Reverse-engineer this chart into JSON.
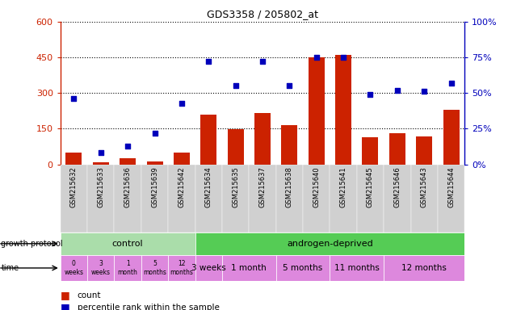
{
  "title": "GDS3358 / 205802_at",
  "samples": [
    "GSM215632",
    "GSM215633",
    "GSM215636",
    "GSM215639",
    "GSM215642",
    "GSM215634",
    "GSM215635",
    "GSM215637",
    "GSM215638",
    "GSM215640",
    "GSM215641",
    "GSM215645",
    "GSM215646",
    "GSM215643",
    "GSM215644"
  ],
  "count": [
    50,
    8,
    25,
    12,
    50,
    210,
    148,
    215,
    165,
    450,
    462,
    115,
    130,
    118,
    228
  ],
  "percentile": [
    46,
    8,
    13,
    22,
    43,
    72,
    55,
    72,
    55,
    75,
    75,
    49,
    52,
    51,
    57
  ],
  "ylim_left": [
    0,
    600
  ],
  "ylim_right": [
    0,
    100
  ],
  "yticks_left": [
    0,
    150,
    300,
    450,
    600
  ],
  "yticks_right": [
    0,
    25,
    50,
    75,
    100
  ],
  "bar_color": "#cc2200",
  "dot_color": "#0000bb",
  "background_color": "#ffffff",
  "plot_bg_color": "#ffffff",
  "right_axis_color": "#0000bb",
  "left_axis_color": "#cc2200",
  "label_count": "count",
  "label_percentile": "percentile rank within the sample",
  "control_color": "#aaddaa",
  "androgen_color": "#55cc55",
  "time_color": "#dd88dd",
  "time_color_dark": "#cc66cc",
  "control_times": [
    "0\nweeks",
    "3\nweeks",
    "1\nmonth",
    "5\nmonths",
    "12\nmonths"
  ],
  "androgen_spans": [
    {
      "label": "3 weeks",
      "cols": 1
    },
    {
      "label": "1 month",
      "cols": 2
    },
    {
      "label": "5 months",
      "cols": 2
    },
    {
      "label": "11 months",
      "cols": 2
    },
    {
      "label": "12 months",
      "cols": 3
    }
  ]
}
